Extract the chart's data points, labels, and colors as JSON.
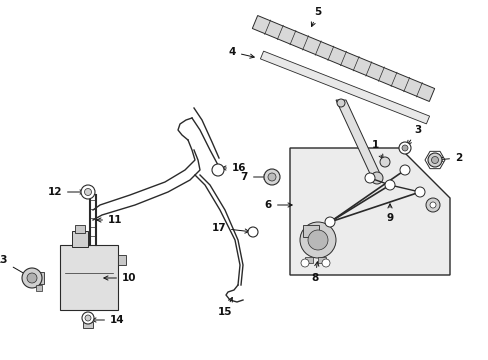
{
  "bg_color": "#ffffff",
  "lc": "#2a2a2a",
  "fig_width": 4.89,
  "fig_height": 3.6,
  "dpi": 100,
  "xlim": [
    0,
    489
  ],
  "ylim": [
    0,
    360
  ]
}
